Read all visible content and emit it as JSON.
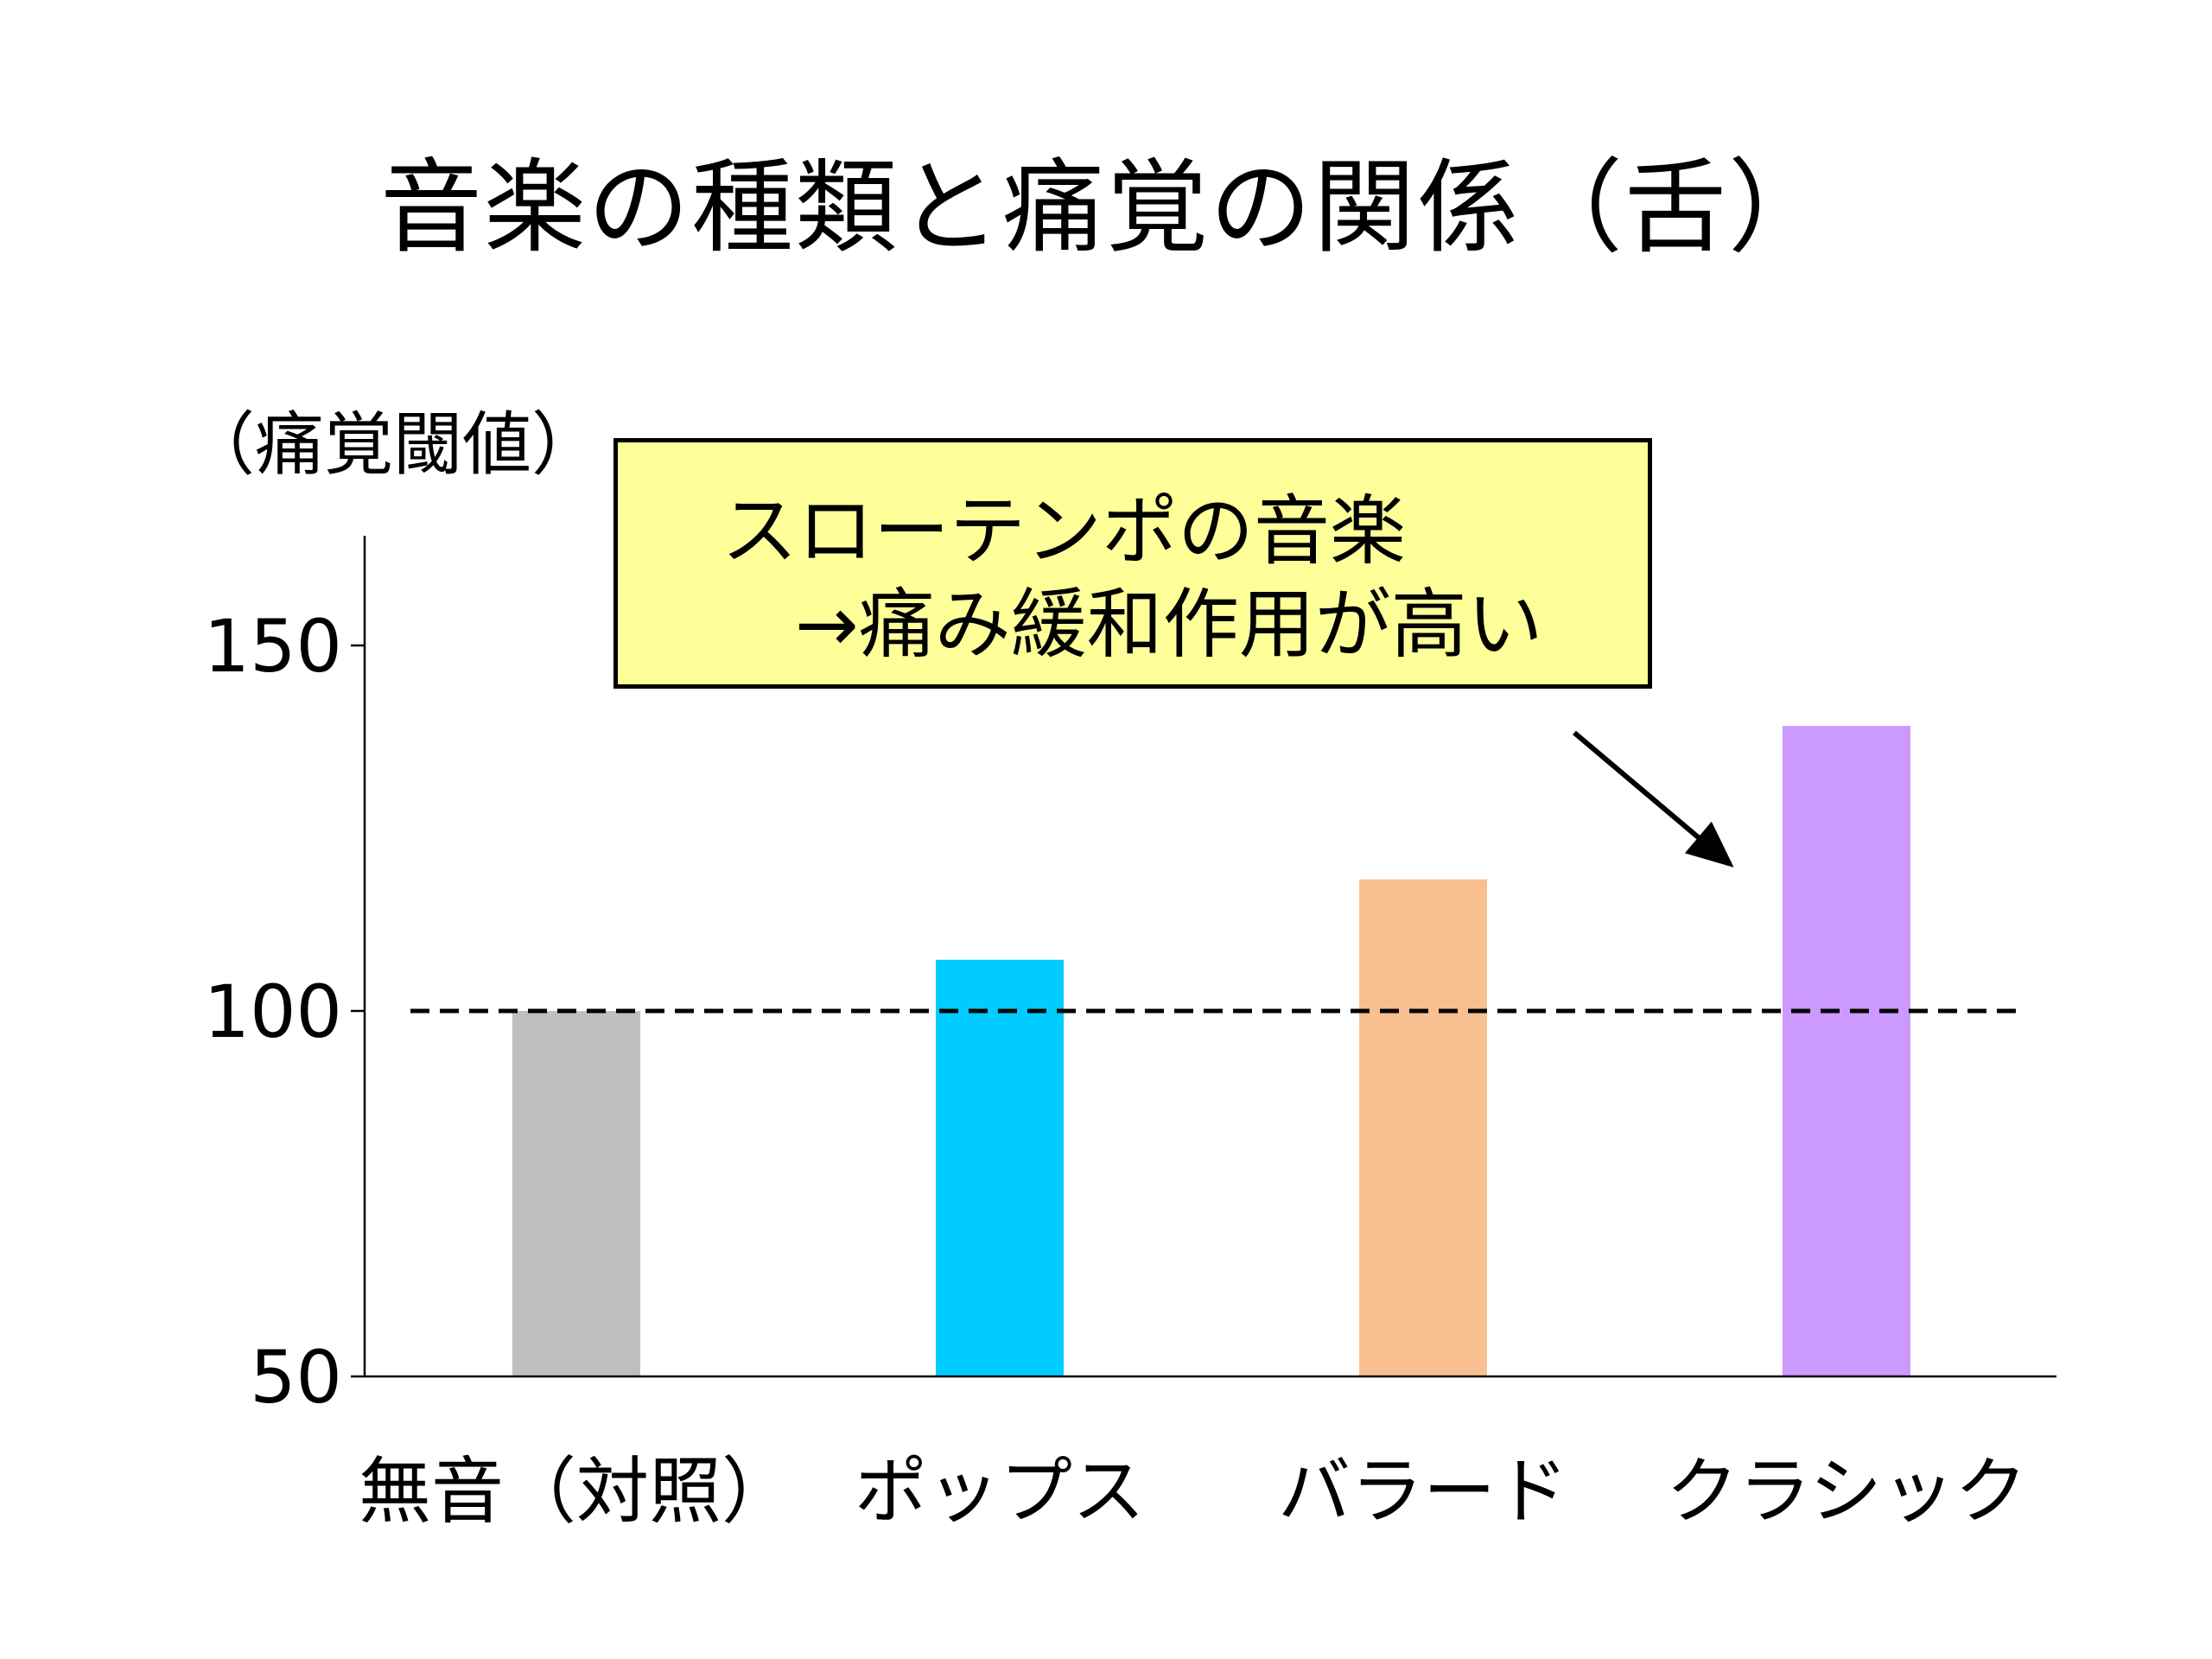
{
  "title": "音楽の種類と痛覚の関係（舌）",
  "ylabel": "（痛覚閾値）",
  "callout": {
    "line1": "スローテンポの音楽",
    "line2": "→痛み緩和作用が高い"
  },
  "chart_data": {
    "type": "bar",
    "title": "音楽の種類と痛覚の関係（舌）",
    "xlabel": "",
    "ylabel": "（痛覚閾値）",
    "categories": [
      "無音（対照）",
      "ポップス",
      "バラード",
      "クラシック"
    ],
    "values": [
      100,
      107,
      118,
      139
    ],
    "colors": [
      "#bfbfbf",
      "#00ccff",
      "#f8c090",
      "#cc99ff"
    ],
    "ylim": [
      50,
      165
    ],
    "yticks": [
      50,
      100,
      150
    ],
    "reference_line": {
      "value": 100,
      "style": "dashed",
      "color": "#000000"
    },
    "grid": false,
    "legend": "none",
    "annotation": {
      "text": [
        "スローテンポの音楽",
        "→痛み緩和作用が高い"
      ],
      "points_to": "クラシック",
      "background": "#ffff99"
    }
  }
}
